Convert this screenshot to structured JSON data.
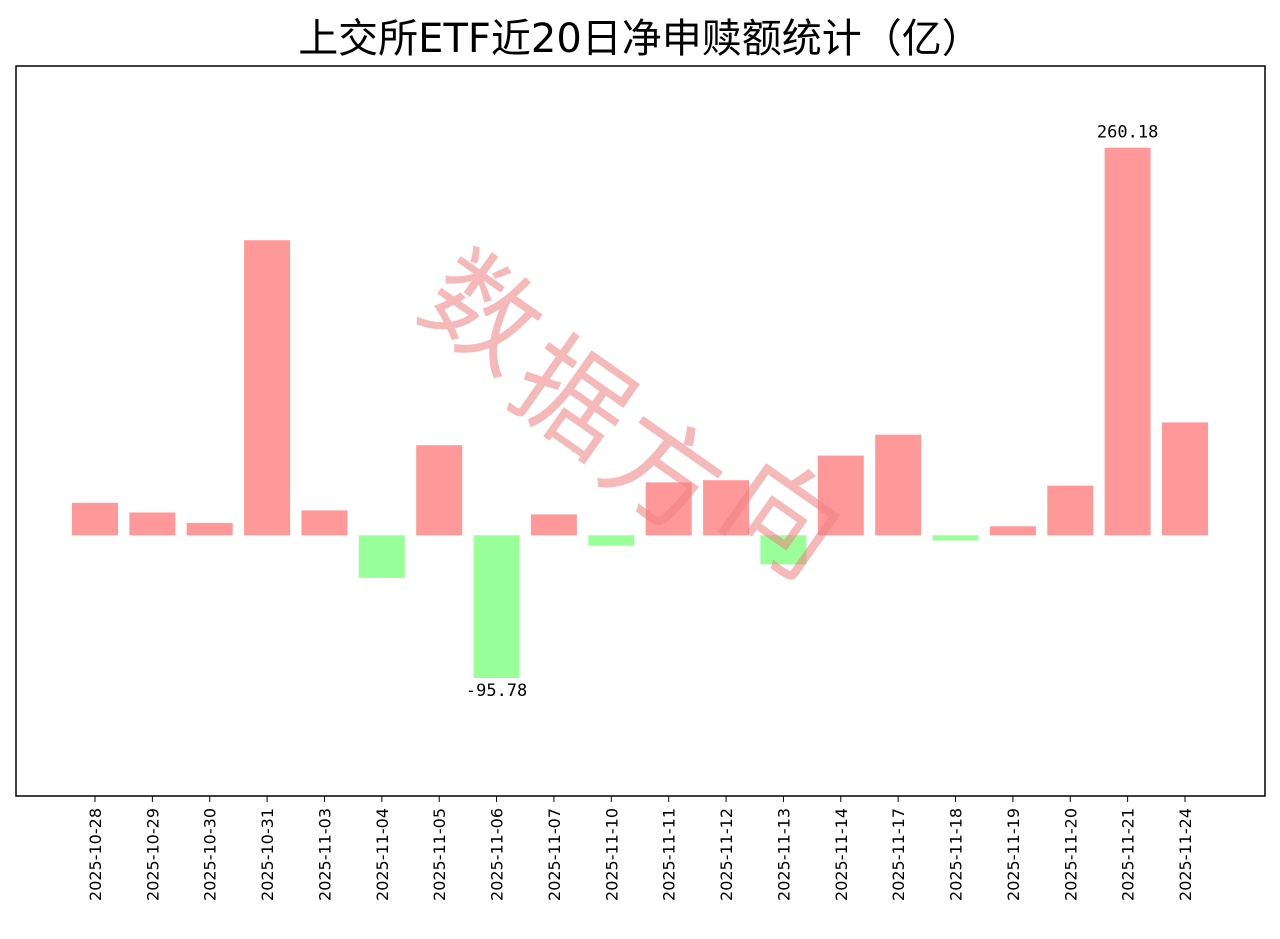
{
  "chart_data": {
    "type": "bar",
    "title": "上交所ETF近20日净申赎额统计（亿）",
    "xlabel": "",
    "ylabel": "",
    "categories": [
      "2025-10-28",
      "2025-10-29",
      "2025-10-30",
      "2025-10-31",
      "2025-11-03",
      "2025-11-04",
      "2025-11-05",
      "2025-11-06",
      "2025-11-07",
      "2025-11-10",
      "2025-11-11",
      "2025-11-12",
      "2025-11-13",
      "2025-11-14",
      "2025-11-17",
      "2025-11-18",
      "2025-11-19",
      "2025-11-20",
      "2025-11-21",
      "2025-11-24"
    ],
    "values": [
      21.8,
      15.3,
      8.3,
      198.1,
      16.7,
      -28.6,
      60.5,
      -95.78,
      14.0,
      -7.0,
      35.5,
      37.0,
      -19.5,
      53.5,
      67.5,
      -3.5,
      6.0,
      33.3,
      260.18,
      75.8
    ],
    "ylim": [
      -175,
      315
    ],
    "grid": false,
    "y_axis_ticks_shown": false,
    "positive_color": "#ff9999",
    "negative_color": "#99ff99",
    "data_labels": [
      {
        "category": "2025-11-06",
        "text": "-95.78"
      },
      {
        "category": "2025-11-21",
        "text": "260.18"
      }
    ]
  },
  "watermark": {
    "text": "数据方向",
    "color": "#f08080"
  }
}
